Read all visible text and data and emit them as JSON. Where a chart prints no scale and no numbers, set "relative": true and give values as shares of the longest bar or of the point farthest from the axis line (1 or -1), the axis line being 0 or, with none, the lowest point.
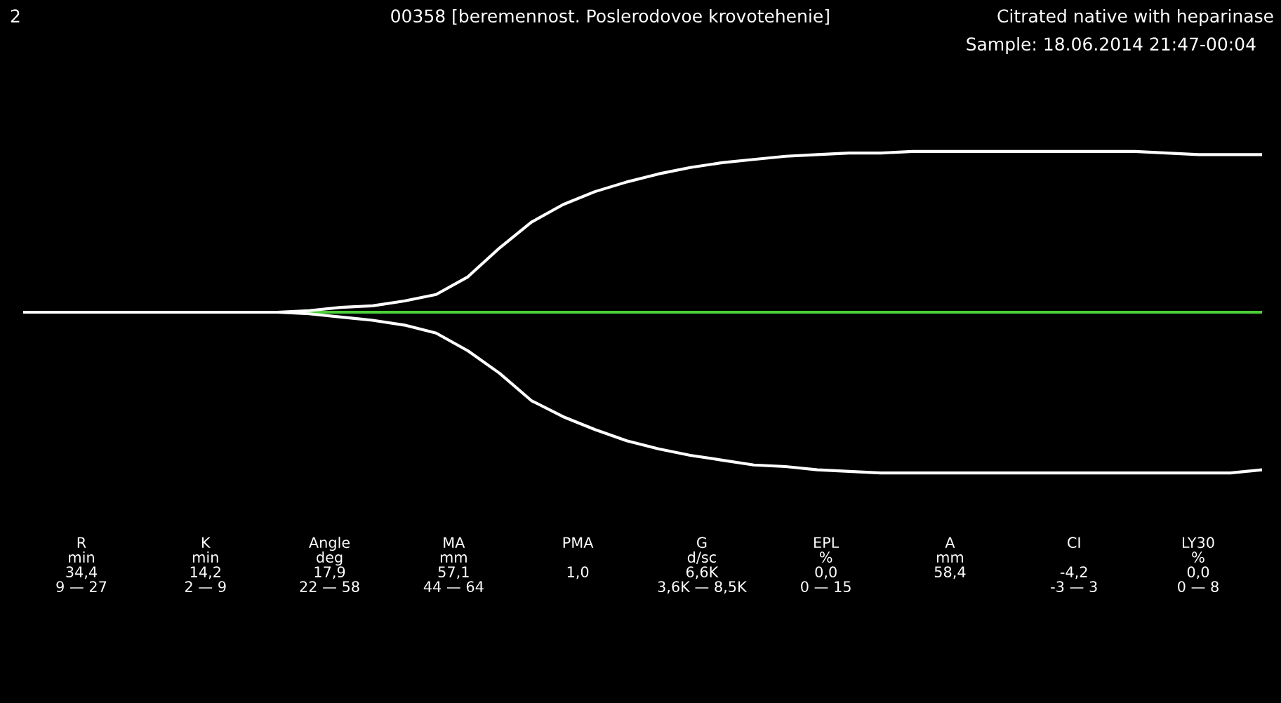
{
  "chart_data": {
    "type": "line",
    "relative": true,
    "title": "00358 [beremennost. Poslerodovoe krovotehenie]",
    "annotations": [
      "2",
      "Citrated native with heparinase",
      "Sample: 18.06.2014 21:47-00:04",
      "R\nmin\n34,4\n9 — 27",
      "K\nmin\n14,2\n2 — 9",
      "Angle\ndeg\n17,9\n22 — 58",
      "MA\nmm\n57,1\n44 — 64",
      "PMA\n \n1,0\n ",
      "G\nd/sc\n6,6K\n3,6K — 8,5K",
      "EPL\n%\n0,0\n0 — 15",
      "A\nmm\n58,4\n ",
      "CI\n \n-4,2\n-3 — 3",
      "LY30\n%\n0,0\n0 — 8"
    ],
    "categories": [
      null,
      null,
      null,
      null,
      null,
      null,
      null,
      null,
      null,
      null,
      null,
      null,
      null,
      null,
      null,
      null,
      null,
      null,
      null,
      null,
      null,
      null,
      null,
      null,
      null,
      null,
      null,
      null,
      null,
      null,
      null,
      null,
      null,
      null,
      null,
      null,
      null,
      null,
      null,
      null
    ],
    "series": [
      {
        "color": "#ffffff",
        "values": [
          0,
          0,
          0,
          0,
          0,
          0,
          0,
          0,
          0,
          0.01,
          0.03,
          0.04,
          0.07,
          0.11,
          0.22,
          0.4,
          0.56,
          0.67,
          0.75,
          0.81,
          0.86,
          0.9,
          0.93,
          0.95,
          0.97,
          0.98,
          0.99,
          0.99,
          1,
          1,
          1,
          1,
          1,
          1,
          1,
          1,
          0.99,
          0.98,
          0.98,
          0.98
        ]
      },
      {
        "color": "#ffffff",
        "values": [
          0,
          0,
          0,
          0,
          0,
          0,
          0,
          0,
          0,
          -0.01,
          -0.03,
          -0.05,
          -0.08,
          -0.13,
          -0.24,
          -0.38,
          -0.55,
          -0.65,
          -0.73,
          -0.8,
          -0.85,
          -0.89,
          -0.92,
          -0.95,
          -0.96,
          -0.98,
          -0.99,
          -1,
          -1,
          -1,
          -1,
          -1,
          -1,
          -1,
          -1,
          -1,
          -1,
          -1,
          -1,
          -0.98
        ]
      }
    ],
    "ref_lines": [
      {
        "axis": "y",
        "value": 0,
        "color": "#4cd137"
      }
    ],
    "legend": false
  }
}
